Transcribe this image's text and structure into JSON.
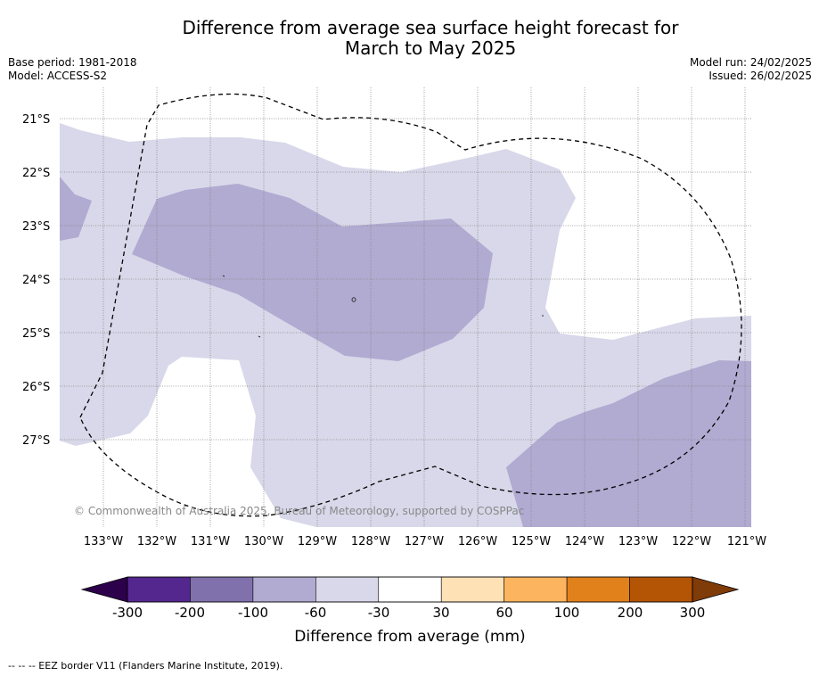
{
  "title_line1": "Difference from average sea surface height forecast for",
  "title_line2": "March to May 2025",
  "base_period": "Base period: 1981-2018",
  "model": "Model: ACCESS-S2",
  "model_run": "Model run: 24/02/2025",
  "issued": "Issued: 26/02/2025",
  "copyright": "© Commonwealth of Australia 2025, Bureau of Meteorology, supported by COSPPac",
  "footer": "-- -- -- EEZ border V11 (Flanders Marine Institute, 2019).",
  "map": {
    "lon_labels": [
      "133°W",
      "132°W",
      "131°W",
      "130°W",
      "129°W",
      "128°W",
      "127°W",
      "126°W",
      "125°W",
      "124°W",
      "123°W",
      "122°W",
      "121°W"
    ],
    "lat_labels": [
      "21°S",
      "22°S",
      "23°S",
      "24°S",
      "25°S",
      "26°S",
      "27°S"
    ]
  },
  "colorbar": {
    "label": "Difference from average (mm)",
    "ticks": [
      "-300",
      "-200",
      "-100",
      "-60",
      "-30",
      "30",
      "60",
      "100",
      "200",
      "300"
    ],
    "colors": [
      "#54278f",
      "#8071ad",
      "#b1aad1",
      "#d8d8ea",
      "#ffffff",
      "#ffe1b6",
      "#fdb45f",
      "#e1811b",
      "#b45405"
    ],
    "extend_low_color": "#2d004b",
    "extend_high_color": "#7f3b08"
  }
}
